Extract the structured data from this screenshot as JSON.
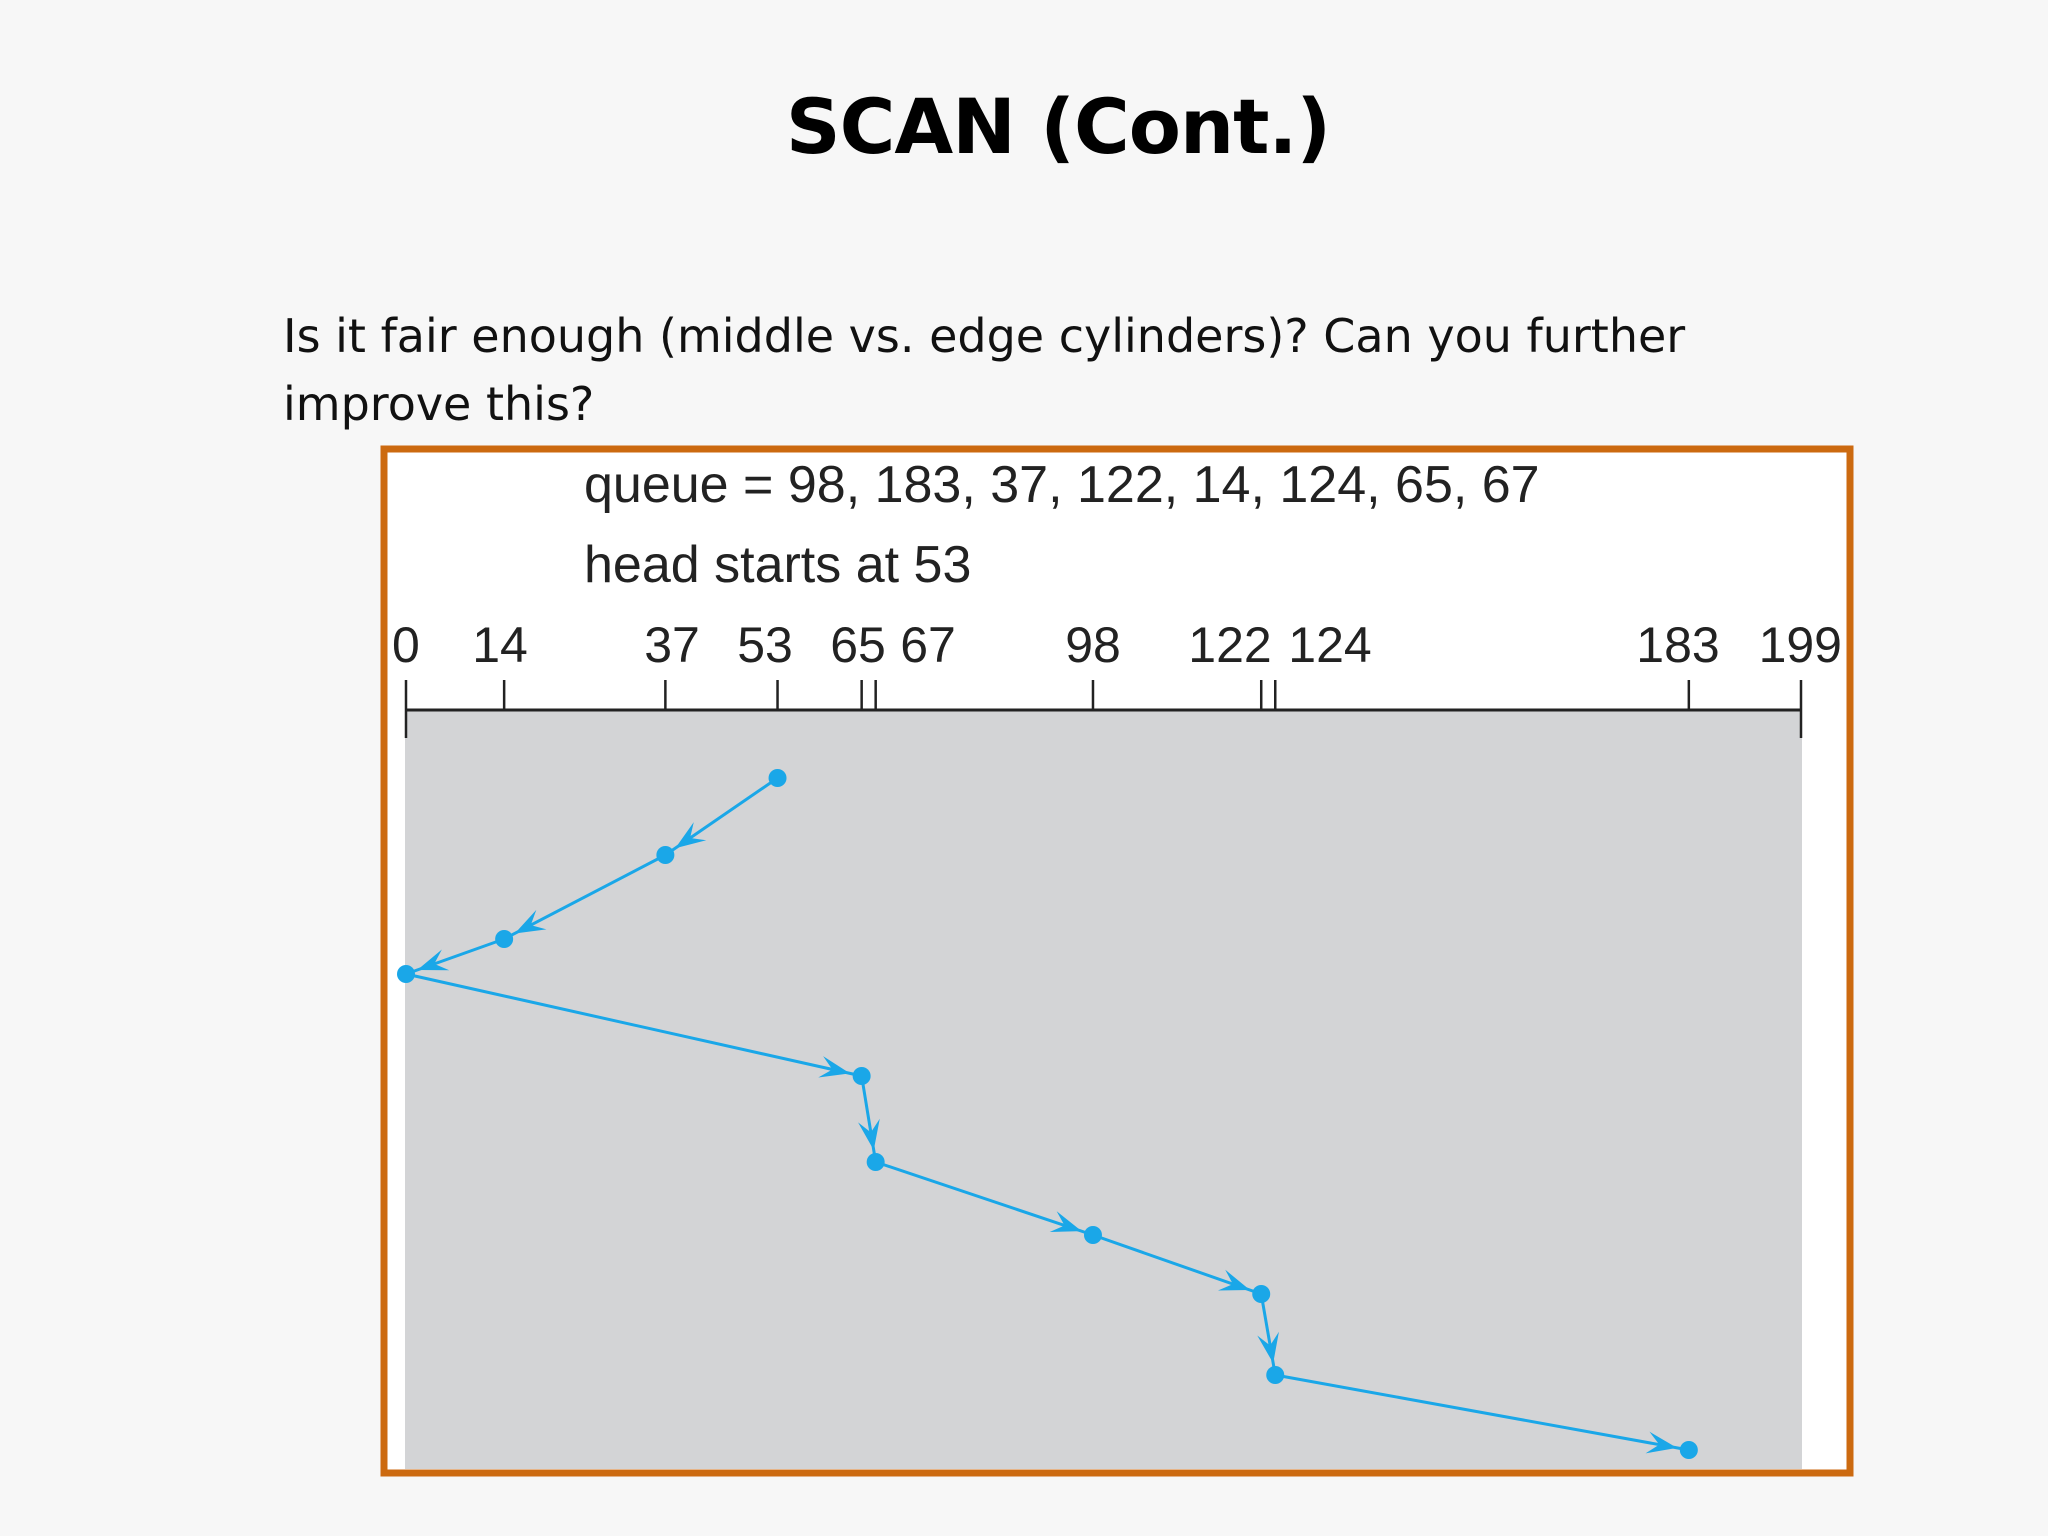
{
  "slide": {
    "title": "SCAN (Cont.)",
    "body_lines": [
      "Is it fair enough (middle vs. edge cylinders)? Can you further",
      "improve this?"
    ]
  },
  "figure": {
    "queue_text": "queue = 98, 183, 37, 122, 14, 124, 65, 67",
    "head_text": "head starts at 53",
    "axis_min": 0,
    "axis_max": 199,
    "tick_labels": [
      0,
      14,
      37,
      53,
      65,
      67,
      98,
      122,
      124,
      183,
      199
    ],
    "service_order": [
      53,
      37,
      14,
      0,
      65,
      67,
      98,
      122,
      124,
      183
    ],
    "colors": {
      "path": "#1aa7e8",
      "frame": "#cc6a10",
      "plot_bg": "#d3d4d6"
    }
  }
}
